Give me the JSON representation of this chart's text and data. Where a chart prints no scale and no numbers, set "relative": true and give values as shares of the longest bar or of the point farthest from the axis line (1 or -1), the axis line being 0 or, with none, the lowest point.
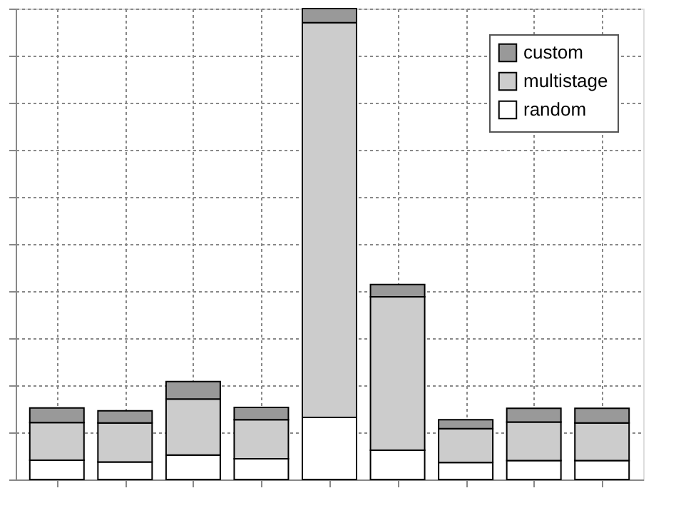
{
  "chart_data": {
    "type": "bar",
    "stacked": true,
    "relative": true,
    "categories": [
      null,
      null,
      null,
      null,
      null,
      null,
      null,
      null,
      null
    ],
    "series": [
      {
        "name": "random",
        "color": "#ffffff",
        "values": [
          0.041,
          0.037,
          0.052,
          0.044,
          0.132,
          0.062,
          0.036,
          0.04,
          0.04
        ]
      },
      {
        "name": "multistage",
        "color": "#cccccc",
        "values": [
          0.08,
          0.083,
          0.119,
          0.083,
          0.838,
          0.326,
          0.072,
          0.082,
          0.08
        ]
      },
      {
        "name": "custom",
        "color": "#999999",
        "values": [
          0.031,
          0.026,
          0.037,
          0.026,
          0.03,
          0.026,
          0.019,
          0.029,
          0.031
        ]
      }
    ],
    "legend": "top right",
    "grid": true
  }
}
